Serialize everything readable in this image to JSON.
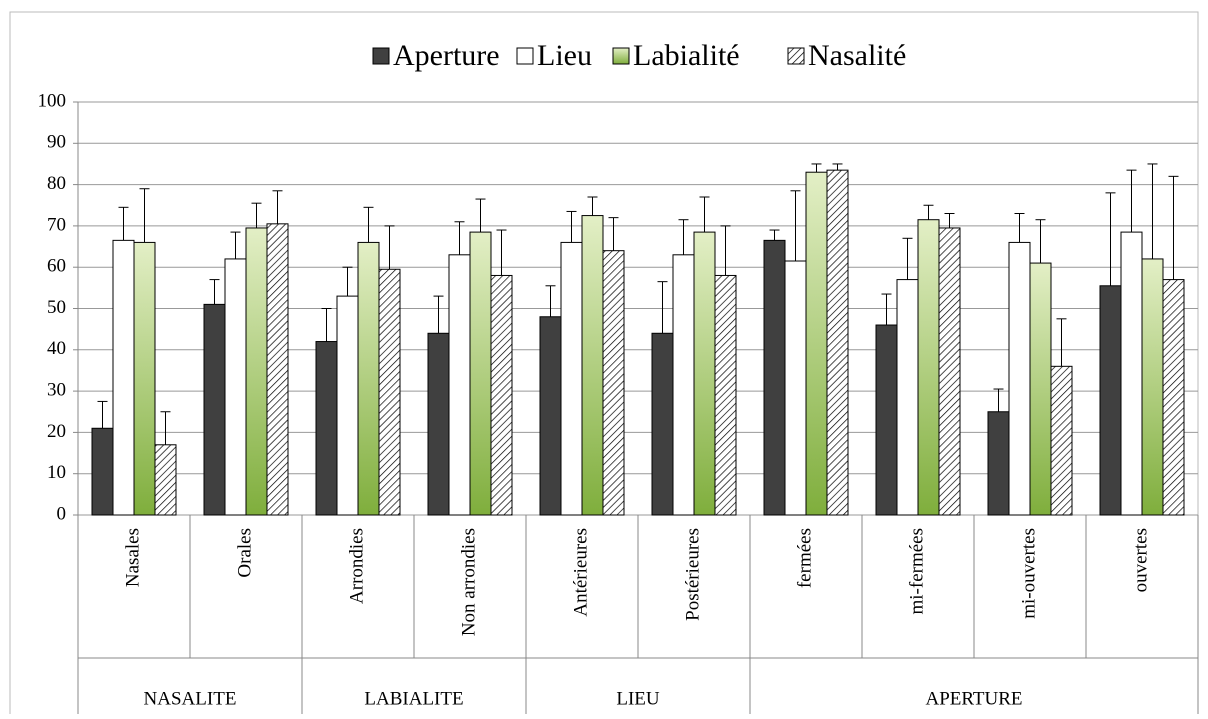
{
  "chart_data": {
    "type": "bar",
    "groups": [
      {
        "name": "NASALITE",
        "categories": [
          "Nasales",
          "Orales"
        ]
      },
      {
        "name": "LABIALITE",
        "categories": [
          "Arrondies",
          "Non arrondies"
        ]
      },
      {
        "name": "LIEU",
        "categories": [
          "Antérieures",
          "Postérieures"
        ]
      },
      {
        "name": "APERTURE",
        "categories": [
          "fermées",
          "mi-fermées",
          "mi-ouvertes",
          "ouvertes"
        ]
      }
    ],
    "series": [
      {
        "name": "Aperture",
        "color": "#404040",
        "values": [
          21,
          51,
          42,
          44,
          48,
          44,
          66.5,
          46,
          25,
          55.5
        ],
        "errors": [
          6.5,
          6,
          8,
          9,
          7.5,
          12.5,
          2.5,
          7.5,
          5.5,
          22.5
        ]
      },
      {
        "name": "Lieu",
        "color": "#ffffff",
        "values": [
          66.5,
          62,
          53,
          63,
          66,
          63,
          61.5,
          57,
          66,
          68.5
        ],
        "errors": [
          8,
          6.5,
          7,
          8,
          7.5,
          8.5,
          17,
          10,
          7,
          15
        ]
      },
      {
        "name": "Labialité",
        "color": "#9bbb59",
        "gradient": true,
        "values": [
          66,
          69.5,
          66,
          68.5,
          72.5,
          68.5,
          83,
          71.5,
          61,
          62
        ],
        "errors": [
          13,
          6,
          8.5,
          8,
          4.5,
          8.5,
          2,
          3.5,
          10.5,
          23
        ]
      },
      {
        "name": "Nasalité",
        "color": "#ffffff",
        "pattern": "hatch",
        "values": [
          17,
          70.5,
          59.5,
          58,
          64,
          58,
          83.5,
          69.5,
          36,
          57
        ],
        "errors": [
          8,
          8,
          10.5,
          11,
          8,
          12,
          1.5,
          3.5,
          11.5,
          25
        ]
      }
    ],
    "ylim": [
      0,
      100
    ],
    "yticks": [
      0,
      10,
      20,
      30,
      40,
      50,
      60,
      70,
      80,
      90,
      100
    ],
    "grid": true,
    "legend": "top"
  }
}
